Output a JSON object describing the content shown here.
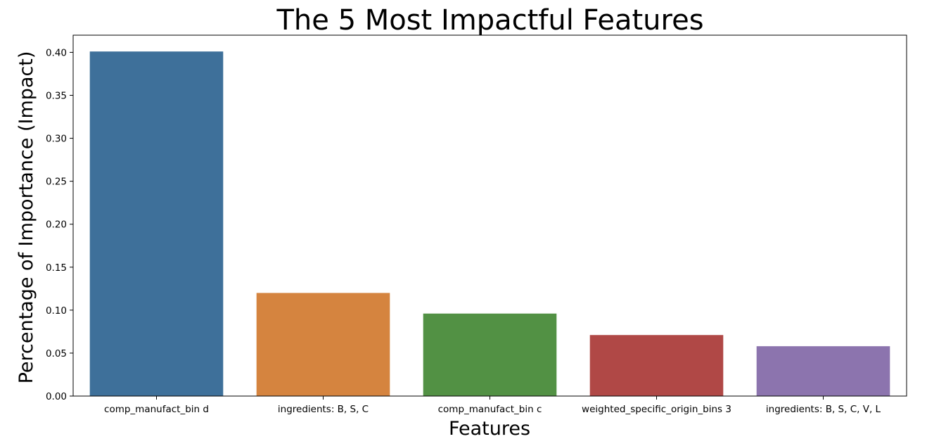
{
  "chart_data": {
    "type": "bar",
    "title": "The 5 Most Impactful Features",
    "xlabel": "Features",
    "ylabel": "Percentage of Importance (Impact)",
    "categories": [
      "comp_manufact_bin d",
      "ingredients: B, S, C",
      "comp_manufact_bin c",
      "weighted_specific_origin_bins 3",
      "ingredients: B, S, C, V, L"
    ],
    "values": [
      0.401,
      0.12,
      0.096,
      0.071,
      0.058
    ],
    "colors": [
      "#3e709a",
      "#d5843f",
      "#529144",
      "#b04846",
      "#8c74ae"
    ],
    "ylim": [
      0,
      0.42
    ],
    "yticks": [
      0.0,
      0.05,
      0.1,
      0.15,
      0.2,
      0.25,
      0.3,
      0.35,
      0.4
    ],
    "ytick_labels": [
      "0.00",
      "0.05",
      "0.10",
      "0.15",
      "0.20",
      "0.25",
      "0.30",
      "0.35",
      "0.40"
    ],
    "grid": false,
    "legend": "none"
  }
}
